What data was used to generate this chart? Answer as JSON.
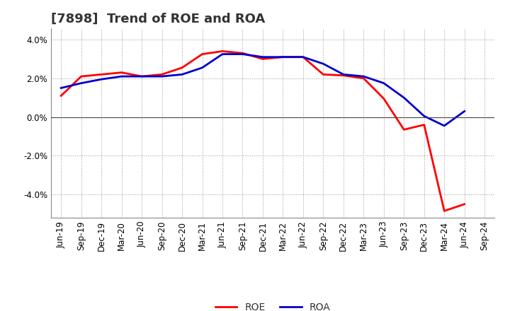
{
  "title": "[7898]  Trend of ROE and ROA",
  "x_labels": [
    "Jun-19",
    "Sep-19",
    "Dec-19",
    "Mar-20",
    "Jun-20",
    "Sep-20",
    "Dec-20",
    "Mar-21",
    "Jun-21",
    "Sep-21",
    "Dec-21",
    "Mar-22",
    "Jun-22",
    "Sep-22",
    "Dec-22",
    "Mar-23",
    "Jun-23",
    "Sep-23",
    "Dec-23",
    "Mar-24",
    "Jun-24",
    "Sep-24"
  ],
  "roe": [
    1.1,
    2.1,
    2.2,
    2.3,
    2.1,
    2.2,
    2.55,
    3.25,
    3.4,
    3.3,
    3.0,
    3.1,
    3.1,
    2.2,
    2.15,
    2.0,
    0.95,
    -0.65,
    -0.4,
    -4.85,
    -4.5,
    null
  ],
  "roa": [
    1.5,
    1.75,
    1.95,
    2.1,
    2.1,
    2.1,
    2.2,
    2.55,
    3.25,
    3.25,
    3.1,
    3.1,
    3.1,
    2.75,
    2.2,
    2.1,
    1.75,
    1.0,
    0.05,
    -0.45,
    0.3,
    null
  ],
  "roe_color": "#ff0000",
  "roa_color": "#0000cc",
  "ylim": [
    -5.2,
    4.6
  ],
  "yticks": [
    -4.0,
    -2.0,
    0.0,
    2.0,
    4.0
  ],
  "background_color": "#ffffff",
  "grid_color": "#999999",
  "title_fontsize": 13,
  "legend_fontsize": 10,
  "tick_fontsize": 8.5,
  "linewidth": 2.0
}
